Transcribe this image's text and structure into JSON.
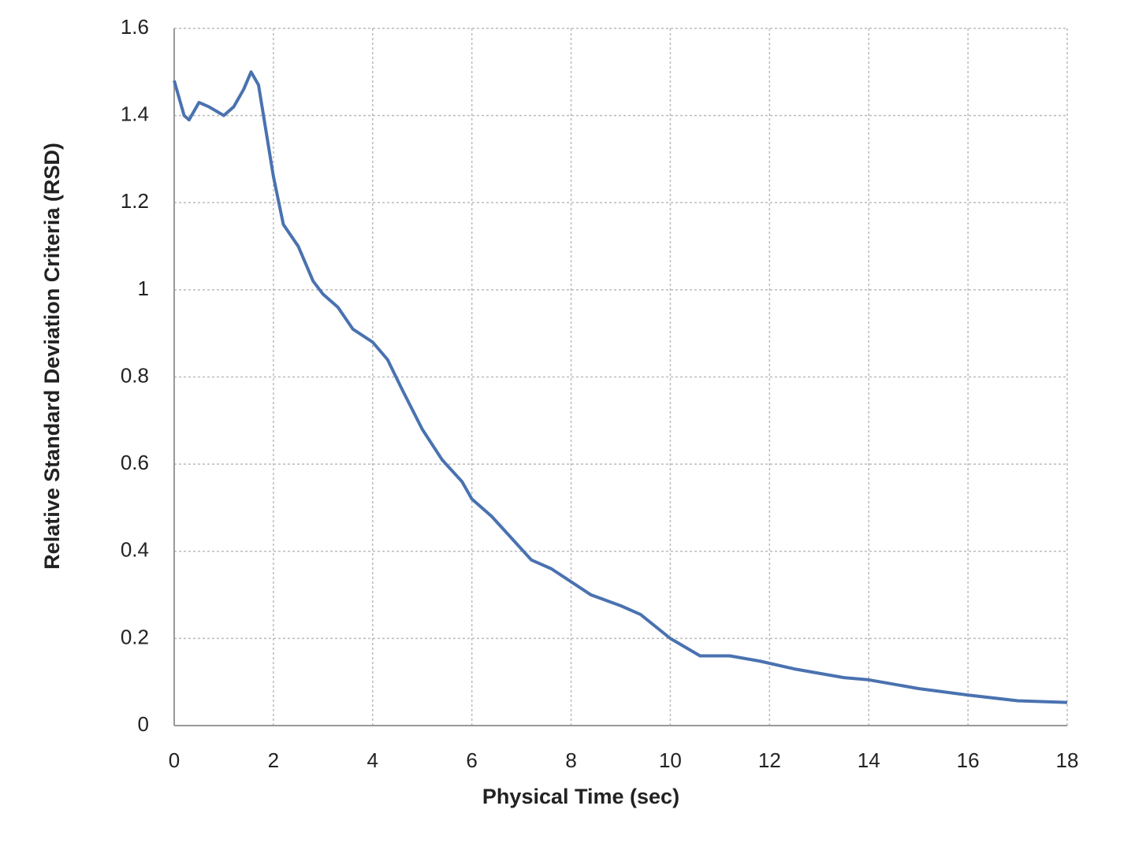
{
  "chart_data": {
    "type": "line",
    "x_label": "Physical Time (sec)",
    "y_label": "Relative Standard Deviation Criteria (RSD)",
    "x": [
      0,
      0.2,
      0.3,
      0.5,
      0.7,
      1.0,
      1.2,
      1.4,
      1.55,
      1.7,
      1.8,
      2.0,
      2.2,
      2.5,
      2.8,
      3.0,
      3.3,
      3.6,
      4.0,
      4.3,
      4.6,
      5.0,
      5.4,
      5.8,
      6.0,
      6.4,
      6.8,
      7.2,
      7.6,
      8.0,
      8.4,
      9.0,
      9.4,
      10.0,
      10.6,
      11.2,
      11.8,
      12.5,
      13.5,
      14.0,
      15.0,
      16.0,
      17.0,
      18.0
    ],
    "series": [
      {
        "name": "RSD",
        "color": "#4a72b0",
        "values": [
          1.48,
          1.4,
          1.39,
          1.43,
          1.42,
          1.4,
          1.42,
          1.46,
          1.5,
          1.47,
          1.4,
          1.26,
          1.15,
          1.1,
          1.02,
          0.99,
          0.96,
          0.91,
          0.88,
          0.84,
          0.77,
          0.68,
          0.61,
          0.56,
          0.52,
          0.48,
          0.43,
          0.38,
          0.36,
          0.33,
          0.3,
          0.275,
          0.255,
          0.2,
          0.16,
          0.16,
          0.148,
          0.13,
          0.11,
          0.105,
          0.085,
          0.07,
          0.057,
          0.053
        ]
      }
    ],
    "xlim": [
      0,
      18
    ],
    "xticks": [
      0,
      2,
      4,
      6,
      8,
      10,
      12,
      14,
      16,
      18
    ],
    "ylim": [
      0,
      1.6
    ],
    "yticks": [
      0,
      0.2,
      0.4,
      0.6,
      0.8,
      1,
      1.2,
      1.4,
      1.6
    ],
    "grid": true
  }
}
